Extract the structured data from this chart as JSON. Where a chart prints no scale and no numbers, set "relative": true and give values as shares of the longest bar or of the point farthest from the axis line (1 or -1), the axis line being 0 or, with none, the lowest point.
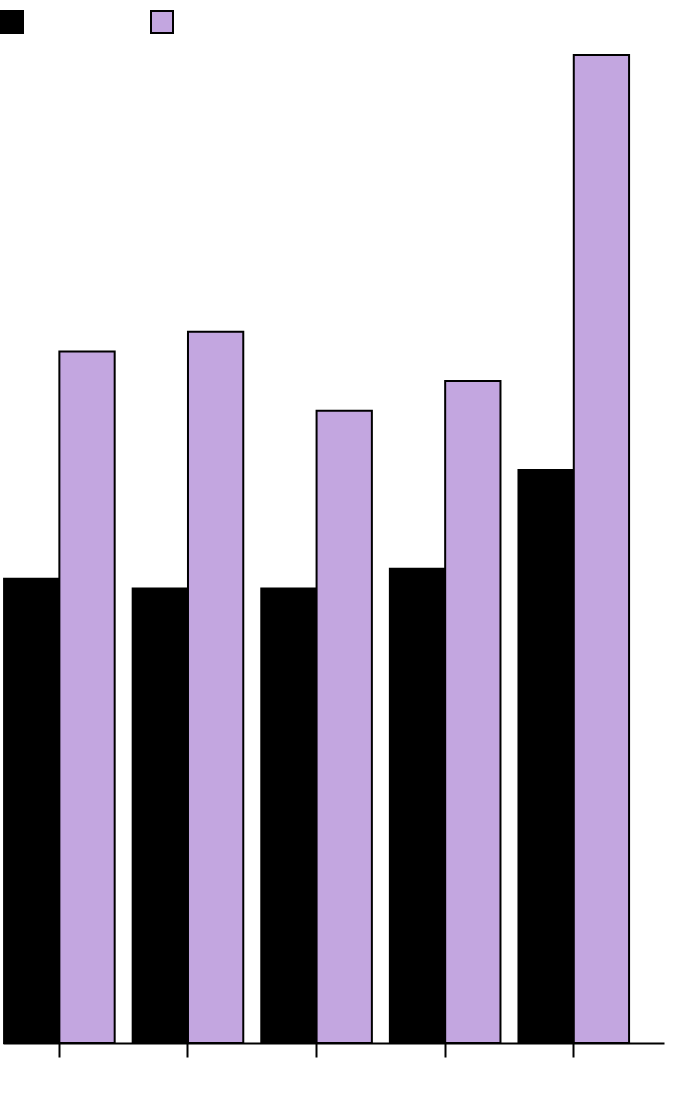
{
  "chart_data": {
    "type": "bar",
    "relative": true,
    "categories": [
      null,
      null,
      null,
      null,
      null
    ],
    "series": [
      {
        "color": "#000000",
        "values": [
          0.47,
          0.46,
          0.46,
          0.48,
          0.58
        ]
      },
      {
        "color": "#c3a6e0",
        "values": [
          0.7,
          0.72,
          0.64,
          0.67,
          1
        ]
      }
    ]
  }
}
